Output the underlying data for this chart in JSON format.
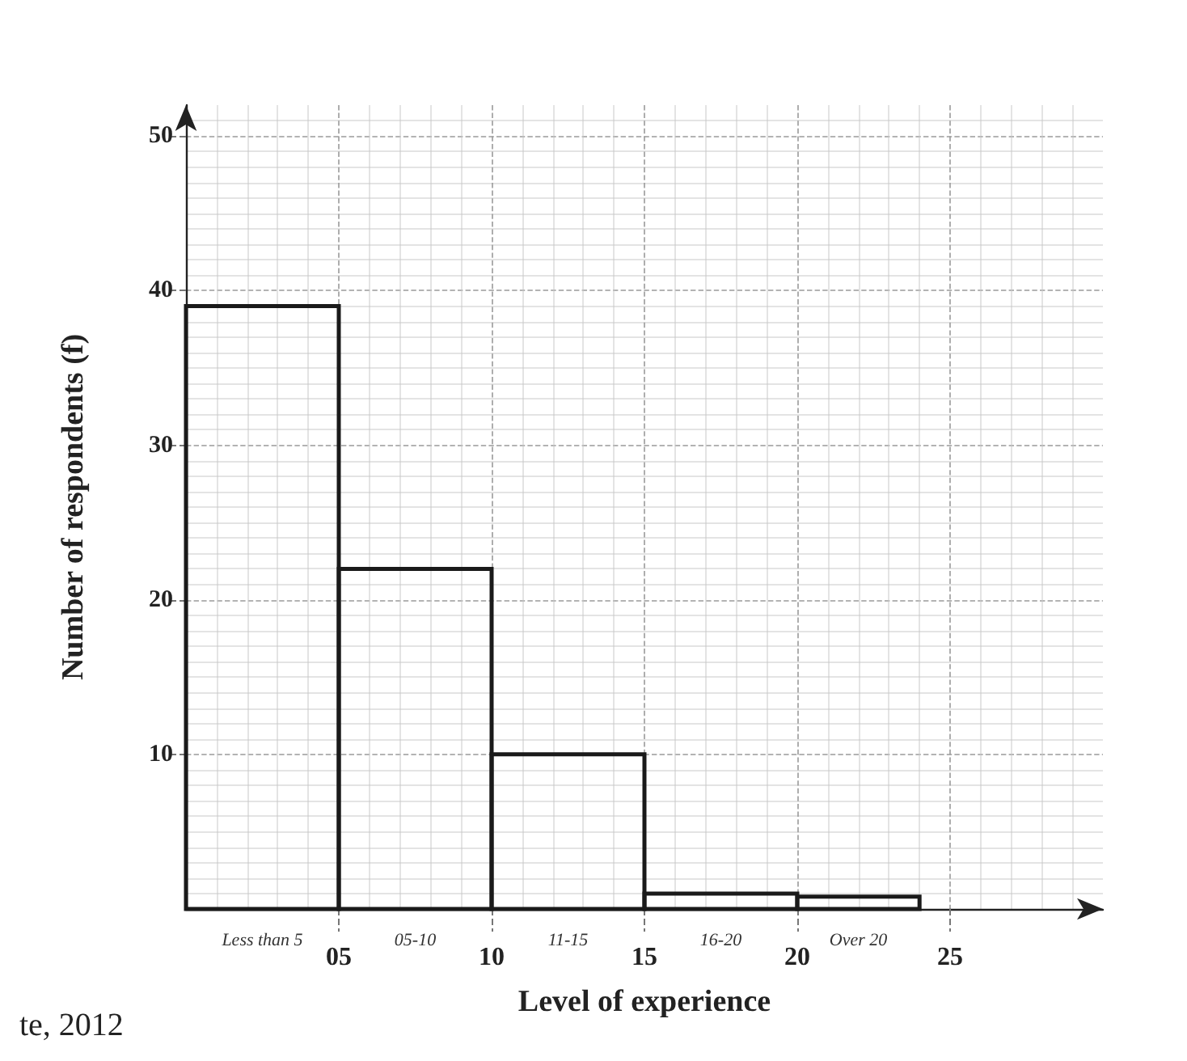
{
  "chart_data": {
    "type": "histogram",
    "xlabel": "Level of experience",
    "ylabel": "Number of respondents (f)",
    "bins": [
      0,
      5,
      10,
      15,
      20,
      24
    ],
    "values": [
      39,
      22,
      10,
      1,
      0.8
    ],
    "color": "#1a1a1a",
    "xlim": [
      0,
      30
    ],
    "ylim": [
      0,
      52
    ],
    "xticks": [
      {
        "value": 5,
        "label": "05"
      },
      10,
      15,
      20,
      25
    ],
    "yticks": [
      10,
      20,
      30,
      40,
      50
    ],
    "grid": true,
    "annotations": [
      "Less than 5",
      "05-10",
      "11-15",
      "16-20",
      "Over 20",
      "te, 2012"
    ]
  }
}
